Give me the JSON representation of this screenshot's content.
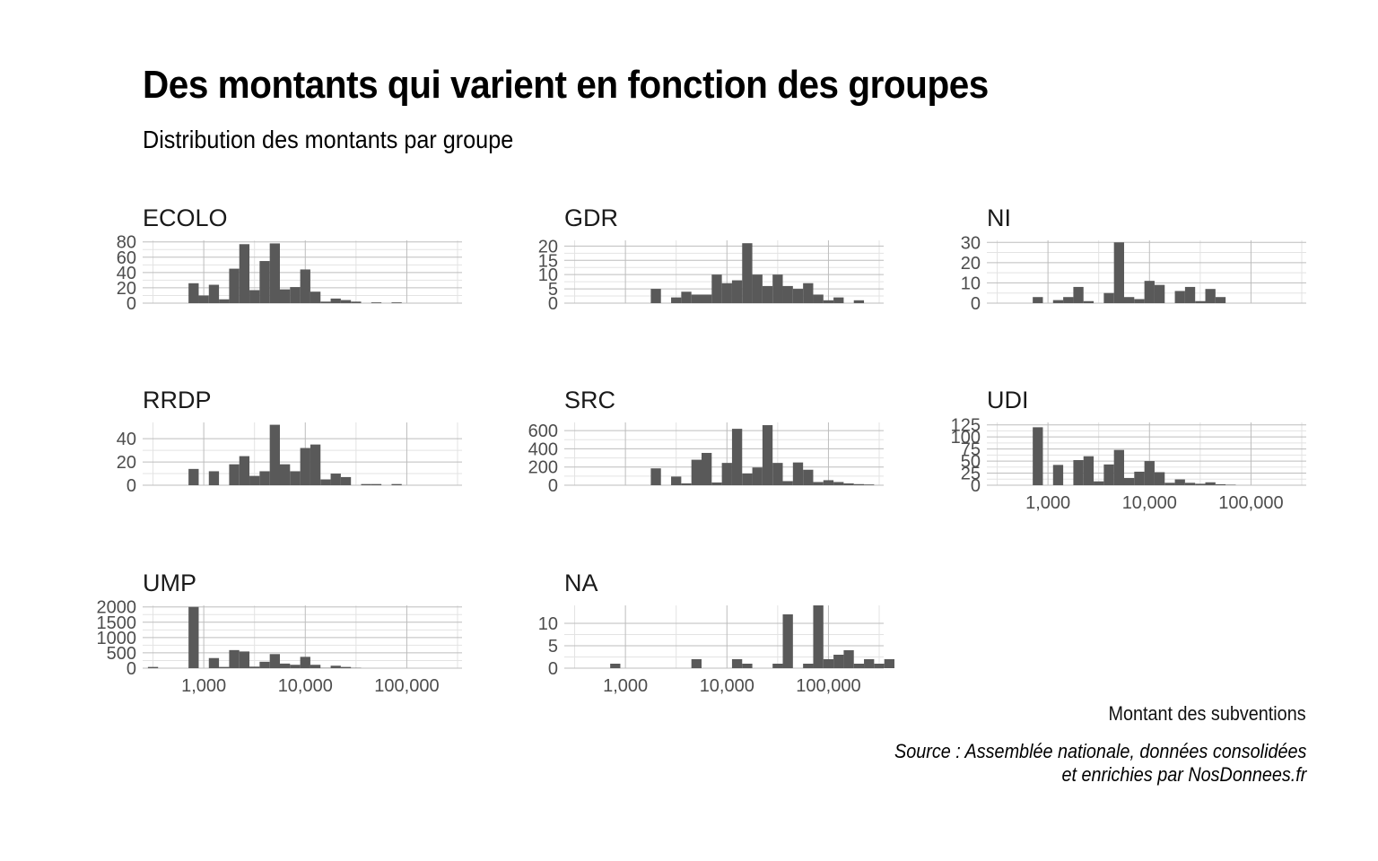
{
  "title": "Des montants qui varient en fonction des groupes",
  "subtitle": "Distribution des montants par groupe",
  "caption": [
    "Source : Assemblée nationale, données consolidées",
    "et enrichies par NosDonnees.fr"
  ],
  "colors": {
    "bar": "#595959",
    "grid_major": "#bdbdbd",
    "grid_minor": "#e3e3e3",
    "text": "#4d4d4d"
  },
  "chart_data": {
    "type": "bar",
    "subtype": "faceted-histogram",
    "xlabel": "Montant des subventions",
    "ylabel": "",
    "x_scale": "log10",
    "xlim": [
      250,
      350000
    ],
    "x_ticks": [
      1000,
      10000,
      100000
    ],
    "x_tick_labels": [
      "1,000",
      "10,000",
      "100,000"
    ],
    "grid": true,
    "bin_width_log10": 0.1,
    "panels": [
      {
        "name": "ECOLO",
        "yticks": [
          0,
          20,
          40,
          60,
          80
        ],
        "ylim": [
          0,
          82
        ],
        "bins": [
          [
            2.9,
            26
          ],
          [
            3.0,
            10
          ],
          [
            3.1,
            24
          ],
          [
            3.2,
            5
          ],
          [
            3.3,
            45
          ],
          [
            3.4,
            77
          ],
          [
            3.5,
            17
          ],
          [
            3.6,
            55
          ],
          [
            3.7,
            78
          ],
          [
            3.8,
            18
          ],
          [
            3.9,
            21
          ],
          [
            4.0,
            44
          ],
          [
            4.1,
            15
          ],
          [
            4.2,
            2
          ],
          [
            4.3,
            6
          ],
          [
            4.4,
            4
          ],
          [
            4.5,
            2
          ],
          [
            4.7,
            1
          ],
          [
            4.9,
            1
          ]
        ]
      },
      {
        "name": "GDR",
        "yticks": [
          0,
          5,
          10,
          15,
          20
        ],
        "ylim": [
          0,
          22
        ],
        "bins": [
          [
            3.3,
            5
          ],
          [
            3.5,
            2
          ],
          [
            3.6,
            4
          ],
          [
            3.7,
            3
          ],
          [
            3.8,
            3
          ],
          [
            3.9,
            10
          ],
          [
            4.0,
            7
          ],
          [
            4.1,
            8
          ],
          [
            4.2,
            21
          ],
          [
            4.3,
            10
          ],
          [
            4.4,
            6
          ],
          [
            4.5,
            10
          ],
          [
            4.6,
            6
          ],
          [
            4.7,
            5
          ],
          [
            4.8,
            7
          ],
          [
            4.9,
            3
          ],
          [
            5.0,
            1
          ],
          [
            5.1,
            2
          ],
          [
            5.3,
            1
          ]
        ]
      },
      {
        "name": "NI",
        "yticks": [
          0,
          10,
          20,
          30
        ],
        "ylim": [
          0,
          31
        ],
        "bins": [
          [
            2.9,
            3
          ],
          [
            3.1,
            1.5
          ],
          [
            3.2,
            3
          ],
          [
            3.3,
            8
          ],
          [
            3.4,
            1
          ],
          [
            3.6,
            5
          ],
          [
            3.7,
            30
          ],
          [
            3.8,
            3
          ],
          [
            3.9,
            2
          ],
          [
            4.0,
            11
          ],
          [
            4.1,
            9
          ],
          [
            4.3,
            6
          ],
          [
            4.4,
            8
          ],
          [
            4.5,
            1
          ],
          [
            4.6,
            7
          ],
          [
            4.7,
            3
          ]
        ]
      },
      {
        "name": "RRDP",
        "yticks": [
          0,
          20,
          40
        ],
        "ylim": [
          0,
          54
        ],
        "bins": [
          [
            2.9,
            14
          ],
          [
            3.1,
            12
          ],
          [
            3.3,
            18
          ],
          [
            3.4,
            25
          ],
          [
            3.5,
            8
          ],
          [
            3.6,
            12
          ],
          [
            3.7,
            52
          ],
          [
            3.8,
            18
          ],
          [
            3.9,
            12
          ],
          [
            4.0,
            32
          ],
          [
            4.1,
            35
          ],
          [
            4.2,
            5
          ],
          [
            4.3,
            10
          ],
          [
            4.4,
            7
          ],
          [
            4.6,
            1
          ],
          [
            4.7,
            1
          ],
          [
            4.9,
            1
          ]
        ]
      },
      {
        "name": "SRC",
        "yticks": [
          0,
          200,
          400,
          600
        ],
        "ylim": [
          0,
          690
        ],
        "bins": [
          [
            3.3,
            185
          ],
          [
            3.5,
            95
          ],
          [
            3.6,
            20
          ],
          [
            3.7,
            280
          ],
          [
            3.8,
            355
          ],
          [
            3.9,
            30
          ],
          [
            4.0,
            245
          ],
          [
            4.1,
            620
          ],
          [
            4.2,
            130
          ],
          [
            4.3,
            195
          ],
          [
            4.4,
            660
          ],
          [
            4.5,
            245
          ],
          [
            4.6,
            45
          ],
          [
            4.7,
            250
          ],
          [
            4.8,
            170
          ],
          [
            4.9,
            35
          ],
          [
            5.0,
            55
          ],
          [
            5.1,
            35
          ],
          [
            5.2,
            20
          ],
          [
            5.3,
            12
          ],
          [
            5.4,
            8
          ]
        ]
      },
      {
        "name": "UDI",
        "yticks": [
          0,
          25,
          50,
          75,
          100,
          125
        ],
        "ylim": [
          0,
          130
        ],
        "bins": [
          [
            2.9,
            120
          ],
          [
            3.1,
            42
          ],
          [
            3.3,
            52
          ],
          [
            3.4,
            60
          ],
          [
            3.5,
            8
          ],
          [
            3.6,
            43
          ],
          [
            3.7,
            73
          ],
          [
            3.8,
            15
          ],
          [
            3.9,
            28
          ],
          [
            4.0,
            50
          ],
          [
            4.1,
            27
          ],
          [
            4.2,
            5
          ],
          [
            4.3,
            12
          ],
          [
            4.4,
            5
          ],
          [
            4.5,
            3
          ],
          [
            4.6,
            6
          ],
          [
            4.7,
            2
          ],
          [
            4.8,
            1
          ]
        ]
      },
      {
        "name": "UMP",
        "yticks": [
          0,
          500,
          1000,
          1500,
          2000
        ],
        "ylim": [
          0,
          2050
        ],
        "bins": [
          [
            2.5,
            40
          ],
          [
            2.9,
            2000
          ],
          [
            3.1,
            330
          ],
          [
            3.2,
            40
          ],
          [
            3.3,
            590
          ],
          [
            3.4,
            545
          ],
          [
            3.5,
            50
          ],
          [
            3.6,
            210
          ],
          [
            3.7,
            460
          ],
          [
            3.8,
            150
          ],
          [
            3.9,
            110
          ],
          [
            4.0,
            370
          ],
          [
            4.1,
            110
          ],
          [
            4.2,
            10
          ],
          [
            4.3,
            80
          ],
          [
            4.4,
            40
          ],
          [
            4.5,
            10
          ]
        ]
      },
      {
        "name": "NA",
        "yticks": [
          0,
          5,
          10
        ],
        "ylim": [
          0,
          14
        ],
        "bins": [
          [
            2.9,
            1
          ],
          [
            3.7,
            2
          ],
          [
            4.1,
            2
          ],
          [
            4.2,
            1
          ],
          [
            4.5,
            1
          ],
          [
            4.6,
            12
          ],
          [
            4.8,
            1
          ],
          [
            4.9,
            14
          ],
          [
            5.0,
            2
          ],
          [
            5.1,
            3
          ],
          [
            5.2,
            4
          ],
          [
            5.3,
            1
          ],
          [
            5.4,
            2
          ],
          [
            5.5,
            1
          ],
          [
            5.6,
            2
          ]
        ]
      }
    ]
  }
}
